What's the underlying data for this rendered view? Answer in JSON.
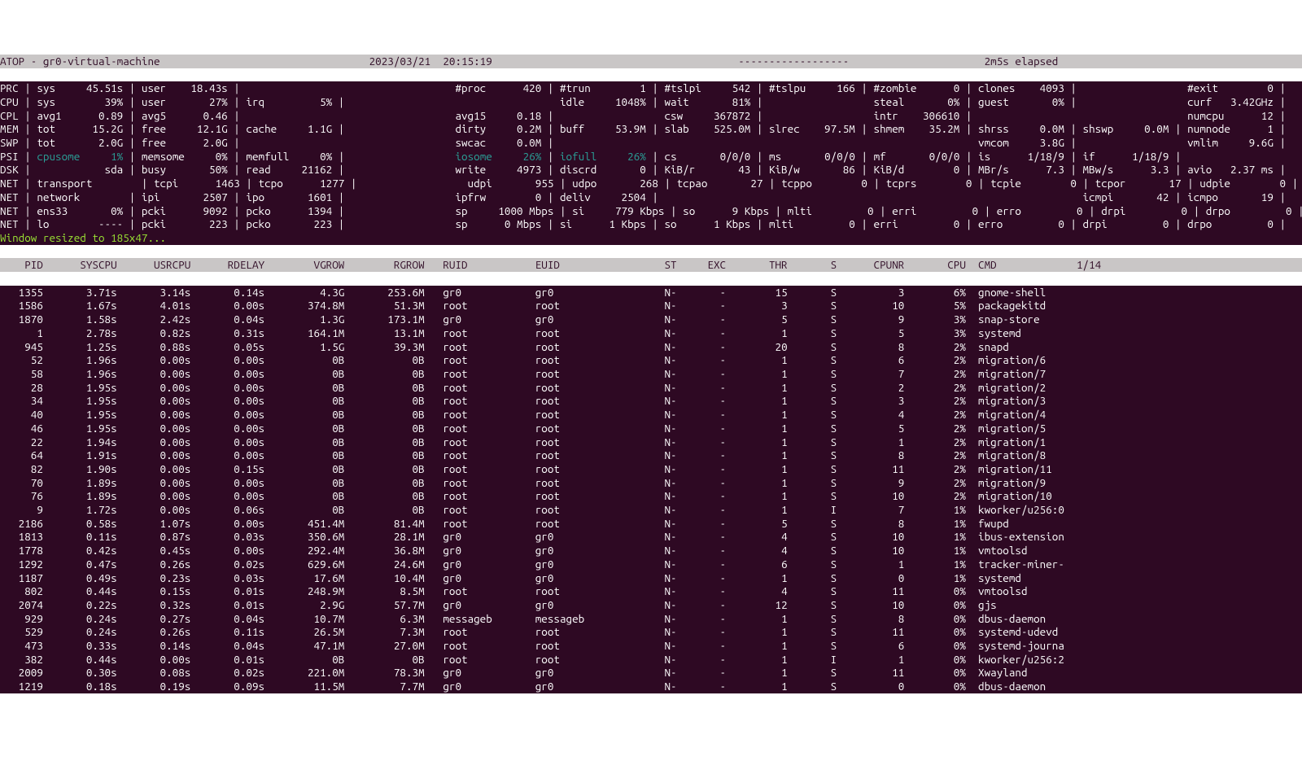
{
  "colors": {
    "bg": "#2e0923",
    "fg": "#ffffff",
    "header_bg": "#c9c6c6",
    "header_fg": "#2e0a24",
    "cyan": "#2aa198",
    "green": "#9ae234"
  },
  "topbar": {
    "left": "ATOP - gr0-virtual-machine",
    "center": "2023/03/21  20:15:19",
    "dash": "------------------",
    "right": "2m5s elapsed"
  },
  "syslines": [
    [
      [
        "PRC",
        " | "
      ],
      [
        "sys",
        "45.51s",
        " | "
      ],
      [
        "user",
        "18.43s",
        " | "
      ],
      [
        "",
        "",
        "   "
      ],
      [
        "",
        "",
        "   "
      ],
      [
        "#proc",
        "420",
        " | "
      ],
      [
        "#trun",
        "1",
        " | "
      ],
      [
        "#tslpi",
        "542",
        " | "
      ],
      [
        "#tslpu",
        "166",
        " | "
      ],
      [
        "#zombie",
        "0",
        " | "
      ],
      [
        "clones",
        "4093",
        " | "
      ],
      [
        "",
        "",
        "   "
      ],
      [
        "#exit",
        "0",
        " |"
      ]
    ],
    [
      [
        "CPU",
        " | "
      ],
      [
        "sys",
        "39%",
        " | "
      ],
      [
        "user",
        "27%",
        " | "
      ],
      [
        "irq",
        "5%",
        " | "
      ],
      [
        "",
        "",
        "   "
      ],
      [
        "",
        "",
        "   "
      ],
      [
        "idle",
        "1048%",
        " | "
      ],
      [
        "wait",
        "81%",
        " | "
      ],
      [
        "",
        "",
        "   "
      ],
      [
        "steal",
        "0%",
        " | "
      ],
      [
        "guest",
        "0%",
        " | "
      ],
      [
        "",
        "",
        "   "
      ],
      [
        "curf",
        "3.42GHz",
        " |"
      ]
    ],
    [
      [
        "CPL",
        " | "
      ],
      [
        "avg1",
        "0.89",
        " | "
      ],
      [
        "avg5",
        "0.46",
        " | "
      ],
      [
        "",
        "",
        "   "
      ],
      [
        "",
        "",
        "   "
      ],
      [
        "avg15",
        "0.18",
        " | "
      ],
      [
        "",
        "",
        "   "
      ],
      [
        "csw",
        "367872",
        " | "
      ],
      [
        "",
        "",
        "   "
      ],
      [
        "intr",
        "306610",
        " | "
      ],
      [
        "",
        "",
        "   "
      ],
      [
        "",
        "",
        "   "
      ],
      [
        "numcpu",
        "12",
        " |"
      ]
    ],
    [
      [
        "MEM",
        " | "
      ],
      [
        "tot",
        "15.2G",
        " | "
      ],
      [
        "free",
        "12.1G",
        " | "
      ],
      [
        "cache",
        "1.1G",
        " | "
      ],
      [
        "",
        "",
        "   "
      ],
      [
        "dirty",
        "0.2M",
        " | "
      ],
      [
        "buff",
        "53.9M",
        " | "
      ],
      [
        "slab",
        "525.0M",
        " | "
      ],
      [
        "slrec",
        "97.5M",
        " | "
      ],
      [
        "shmem",
        "35.2M",
        " | "
      ],
      [
        "shrss",
        "0.0M",
        " | "
      ],
      [
        "shswp",
        "0.0M",
        " | "
      ],
      [
        "numnode",
        "1",
        " |"
      ]
    ],
    [
      [
        "SWP",
        " | "
      ],
      [
        "tot",
        "2.0G",
        " | "
      ],
      [
        "free",
        "2.0G",
        " | "
      ],
      [
        "",
        "",
        "   "
      ],
      [
        "",
        "",
        "   "
      ],
      [
        "swcac",
        "0.0M",
        " | "
      ],
      [
        "",
        "",
        "   "
      ],
      [
        "",
        "",
        "   "
      ],
      [
        "",
        "",
        "   "
      ],
      [
        "",
        "",
        "   "
      ],
      [
        "vmcom",
        "3.8G",
        " | "
      ],
      [
        "",
        "",
        "   "
      ],
      [
        "vmlim",
        "9.6G",
        " |"
      ]
    ],
    [
      [
        "PSI",
        " | "
      ],
      [
        "cpusome",
        "1%",
        " | ",
        "cyan"
      ],
      [
        "memsome",
        "0%",
        " | "
      ],
      [
        "memfull",
        "0%",
        " | "
      ],
      [
        "",
        "",
        "   "
      ],
      [
        "iosome",
        "26%",
        " | ",
        "cyan"
      ],
      [
        "iofull",
        "26%",
        " | ",
        "cyan"
      ],
      [
        "cs",
        "0/0/0",
        " | "
      ],
      [
        "ms",
        "0/0/0",
        " | "
      ],
      [
        "mf",
        "0/0/0",
        " | "
      ],
      [
        "is",
        "1/18/9",
        " | "
      ],
      [
        "if",
        "1/18/9",
        " | "
      ],
      [
        "",
        "",
        ""
      ]
    ],
    [
      [
        "DSK",
        " | "
      ],
      [
        "",
        "sda",
        " | "
      ],
      [
        "busy",
        "50%",
        " | "
      ],
      [
        "read",
        "21162",
        " | "
      ],
      [
        "",
        "",
        "   "
      ],
      [
        "write",
        "4973",
        " | "
      ],
      [
        "discrd",
        "0",
        " | "
      ],
      [
        "KiB/r",
        "43",
        " | "
      ],
      [
        "KiB/w",
        "86",
        " | "
      ],
      [
        "KiB/d",
        "0",
        " | "
      ],
      [
        "MBr/s",
        "7.3",
        " | "
      ],
      [
        "MBw/s",
        "3.3",
        " | "
      ],
      [
        "avio",
        "2.37 ms",
        " |"
      ]
    ],
    [
      [
        "NET",
        " | "
      ],
      [
        "transport",
        "",
        " | "
      ],
      [
        "tcpi",
        "1463",
        " | "
      ],
      [
        "tcpo",
        "1277",
        " | "
      ],
      [
        "",
        "",
        "   "
      ],
      [
        "udpi",
        "955",
        " | "
      ],
      [
        "udpo",
        "268",
        " | "
      ],
      [
        "tcpao",
        "27",
        " | "
      ],
      [
        "tcppo",
        "0",
        " | "
      ],
      [
        "tcprs",
        "0",
        " | "
      ],
      [
        "tcpie",
        "0",
        " | "
      ],
      [
        "tcpor",
        "17",
        " | "
      ],
      [
        "udpie",
        "0",
        " |"
      ]
    ],
    [
      [
        "NET",
        " | "
      ],
      [
        "network",
        "",
        " | "
      ],
      [
        "ipi",
        "2507",
        " | "
      ],
      [
        "ipo",
        "1601",
        " | "
      ],
      [
        "",
        "",
        "   "
      ],
      [
        "ipfrw",
        "0",
        " | "
      ],
      [
        "deliv",
        "2504",
        " | "
      ],
      [
        "",
        "",
        "   "
      ],
      [
        "",
        "",
        "   "
      ],
      [
        "",
        "",
        "   "
      ],
      [
        "",
        "",
        "   "
      ],
      [
        "icmpi",
        "42",
        " | "
      ],
      [
        "icmpo",
        "19",
        " |"
      ]
    ],
    [
      [
        "NET",
        " | "
      ],
      [
        "ens33",
        "0%",
        " | "
      ],
      [
        "pcki",
        "9092",
        " | "
      ],
      [
        "pcko",
        "1394",
        " | "
      ],
      [
        "",
        "",
        "   "
      ],
      [
        "sp",
        "1000 Mbps",
        " | "
      ],
      [
        "si",
        "779 Kbps",
        " | "
      ],
      [
        "so",
        "9 Kbps",
        " | "
      ],
      [
        "mlti",
        "0",
        " | "
      ],
      [
        "erri",
        "0",
        " | "
      ],
      [
        "erro",
        "0",
        " | "
      ],
      [
        "drpi",
        "0",
        " | "
      ],
      [
        "drpo",
        "0",
        " |"
      ]
    ],
    [
      [
        "NET",
        " | "
      ],
      [
        "lo",
        "----",
        " | "
      ],
      [
        "pcki",
        "223",
        " | "
      ],
      [
        "pcko",
        "223",
        " | "
      ],
      [
        "",
        "",
        "   "
      ],
      [
        "sp",
        "0 Mbps",
        " | "
      ],
      [
        "si",
        "1 Kbps",
        " | "
      ],
      [
        "so",
        "1 Kbps",
        " | "
      ],
      [
        "mlti",
        "0",
        " | "
      ],
      [
        "erri",
        "0",
        " | "
      ],
      [
        "erro",
        "0",
        " | "
      ],
      [
        "drpi",
        "0",
        " | "
      ],
      [
        "drpo",
        "0",
        " |"
      ]
    ]
  ],
  "resize_msg": "Window resized to 185x47...",
  "proc_header": [
    "PID",
    "SYSCPU",
    "USRCPU",
    "RDELAY",
    "VGROW",
    "RGROW",
    "RUID",
    "EUID",
    "ST",
    "EXC",
    "THR",
    "S",
    "CPUNR",
    "CPU",
    "",
    "CMD"
  ],
  "proc_header_right": "1/14",
  "procs": [
    [
      "1355",
      "3.71s",
      "3.14s",
      "0.14s",
      "4.3G",
      "253.6M",
      "gr0",
      "gr0",
      "N-",
      "-",
      "15",
      "S",
      "3",
      "6%",
      "",
      "gnome-shell"
    ],
    [
      "1586",
      "1.67s",
      "4.01s",
      "0.00s",
      "374.8M",
      "51.3M",
      "root",
      "root",
      "N-",
      "-",
      "3",
      "S",
      "10",
      "5%",
      "",
      "packagekitd"
    ],
    [
      "1870",
      "1.58s",
      "2.42s",
      "0.04s",
      "1.3G",
      "173.1M",
      "gr0",
      "gr0",
      "N-",
      "-",
      "5",
      "S",
      "9",
      "3%",
      "",
      "snap-store"
    ],
    [
      "1",
      "2.78s",
      "0.82s",
      "0.31s",
      "164.1M",
      "13.1M",
      "root",
      "root",
      "N-",
      "-",
      "1",
      "S",
      "5",
      "3%",
      "",
      "systemd"
    ],
    [
      "945",
      "1.25s",
      "0.88s",
      "0.05s",
      "1.5G",
      "39.3M",
      "root",
      "root",
      "N-",
      "-",
      "20",
      "S",
      "8",
      "2%",
      "",
      "snapd"
    ],
    [
      "52",
      "1.96s",
      "0.00s",
      "0.00s",
      "0B",
      "0B",
      "root",
      "root",
      "N-",
      "-",
      "1",
      "S",
      "6",
      "2%",
      "",
      "migration/6"
    ],
    [
      "58",
      "1.96s",
      "0.00s",
      "0.00s",
      "0B",
      "0B",
      "root",
      "root",
      "N-",
      "-",
      "1",
      "S",
      "7",
      "2%",
      "",
      "migration/7"
    ],
    [
      "28",
      "1.95s",
      "0.00s",
      "0.00s",
      "0B",
      "0B",
      "root",
      "root",
      "N-",
      "-",
      "1",
      "S",
      "2",
      "2%",
      "",
      "migration/2"
    ],
    [
      "34",
      "1.95s",
      "0.00s",
      "0.00s",
      "0B",
      "0B",
      "root",
      "root",
      "N-",
      "-",
      "1",
      "S",
      "3",
      "2%",
      "",
      "migration/3"
    ],
    [
      "40",
      "1.95s",
      "0.00s",
      "0.00s",
      "0B",
      "0B",
      "root",
      "root",
      "N-",
      "-",
      "1",
      "S",
      "4",
      "2%",
      "",
      "migration/4"
    ],
    [
      "46",
      "1.95s",
      "0.00s",
      "0.00s",
      "0B",
      "0B",
      "root",
      "root",
      "N-",
      "-",
      "1",
      "S",
      "5",
      "2%",
      "",
      "migration/5"
    ],
    [
      "22",
      "1.94s",
      "0.00s",
      "0.00s",
      "0B",
      "0B",
      "root",
      "root",
      "N-",
      "-",
      "1",
      "S",
      "1",
      "2%",
      "",
      "migration/1"
    ],
    [
      "64",
      "1.91s",
      "0.00s",
      "0.00s",
      "0B",
      "0B",
      "root",
      "root",
      "N-",
      "-",
      "1",
      "S",
      "8",
      "2%",
      "",
      "migration/8"
    ],
    [
      "82",
      "1.90s",
      "0.00s",
      "0.15s",
      "0B",
      "0B",
      "root",
      "root",
      "N-",
      "-",
      "1",
      "S",
      "11",
      "2%",
      "",
      "migration/11"
    ],
    [
      "70",
      "1.89s",
      "0.00s",
      "0.00s",
      "0B",
      "0B",
      "root",
      "root",
      "N-",
      "-",
      "1",
      "S",
      "9",
      "2%",
      "",
      "migration/9"
    ],
    [
      "76",
      "1.89s",
      "0.00s",
      "0.00s",
      "0B",
      "0B",
      "root",
      "root",
      "N-",
      "-",
      "1",
      "S",
      "10",
      "2%",
      "",
      "migration/10"
    ],
    [
      "9",
      "1.72s",
      "0.00s",
      "0.06s",
      "0B",
      "0B",
      "root",
      "root",
      "N-",
      "-",
      "1",
      "I",
      "7",
      "1%",
      "",
      "kworker/u256:0"
    ],
    [
      "2186",
      "0.58s",
      "1.07s",
      "0.00s",
      "451.4M",
      "81.4M",
      "root",
      "root",
      "N-",
      "-",
      "5",
      "S",
      "8",
      "1%",
      "",
      "fwupd"
    ],
    [
      "1813",
      "0.11s",
      "0.87s",
      "0.03s",
      "350.6M",
      "28.1M",
      "gr0",
      "gr0",
      "N-",
      "-",
      "4",
      "S",
      "10",
      "1%",
      "",
      "ibus-extension"
    ],
    [
      "1778",
      "0.42s",
      "0.45s",
      "0.00s",
      "292.4M",
      "36.8M",
      "gr0",
      "gr0",
      "N-",
      "-",
      "4",
      "S",
      "10",
      "1%",
      "",
      "vmtoolsd"
    ],
    [
      "1292",
      "0.47s",
      "0.26s",
      "0.02s",
      "629.6M",
      "24.6M",
      "gr0",
      "gr0",
      "N-",
      "-",
      "6",
      "S",
      "1",
      "1%",
      "",
      "tracker-miner-"
    ],
    [
      "1187",
      "0.49s",
      "0.23s",
      "0.03s",
      "17.6M",
      "10.4M",
      "gr0",
      "gr0",
      "N-",
      "-",
      "1",
      "S",
      "0",
      "1%",
      "",
      "systemd"
    ],
    [
      "802",
      "0.44s",
      "0.15s",
      "0.01s",
      "248.9M",
      "8.5M",
      "root",
      "root",
      "N-",
      "-",
      "4",
      "S",
      "11",
      "0%",
      "",
      "vmtoolsd"
    ],
    [
      "2074",
      "0.22s",
      "0.32s",
      "0.01s",
      "2.9G",
      "57.7M",
      "gr0",
      "gr0",
      "N-",
      "-",
      "12",
      "S",
      "10",
      "0%",
      "",
      "gjs"
    ],
    [
      "929",
      "0.24s",
      "0.27s",
      "0.04s",
      "10.7M",
      "6.3M",
      "messageb",
      "messageb",
      "N-",
      "-",
      "1",
      "S",
      "8",
      "0%",
      "",
      "dbus-daemon"
    ],
    [
      "529",
      "0.24s",
      "0.26s",
      "0.11s",
      "26.5M",
      "7.3M",
      "root",
      "root",
      "N-",
      "-",
      "1",
      "S",
      "11",
      "0%",
      "",
      "systemd-udevd"
    ],
    [
      "473",
      "0.33s",
      "0.14s",
      "0.04s",
      "47.1M",
      "27.0M",
      "root",
      "root",
      "N-",
      "-",
      "1",
      "S",
      "6",
      "0%",
      "",
      "systemd-journa"
    ],
    [
      "382",
      "0.44s",
      "0.00s",
      "0.01s",
      "0B",
      "0B",
      "root",
      "root",
      "N-",
      "-",
      "1",
      "I",
      "1",
      "0%",
      "",
      "kworker/u256:2"
    ],
    [
      "2009",
      "0.30s",
      "0.08s",
      "0.02s",
      "221.0M",
      "78.3M",
      "gr0",
      "gr0",
      "N-",
      "-",
      "1",
      "S",
      "11",
      "0%",
      "",
      "Xwayland"
    ],
    [
      "1219",
      "0.18s",
      "0.19s",
      "0.09s",
      "11.5M",
      "7.7M",
      "gr0",
      "gr0",
      "N-",
      "-",
      "1",
      "S",
      "0",
      "0%",
      "",
      "dbus-daemon"
    ]
  ]
}
